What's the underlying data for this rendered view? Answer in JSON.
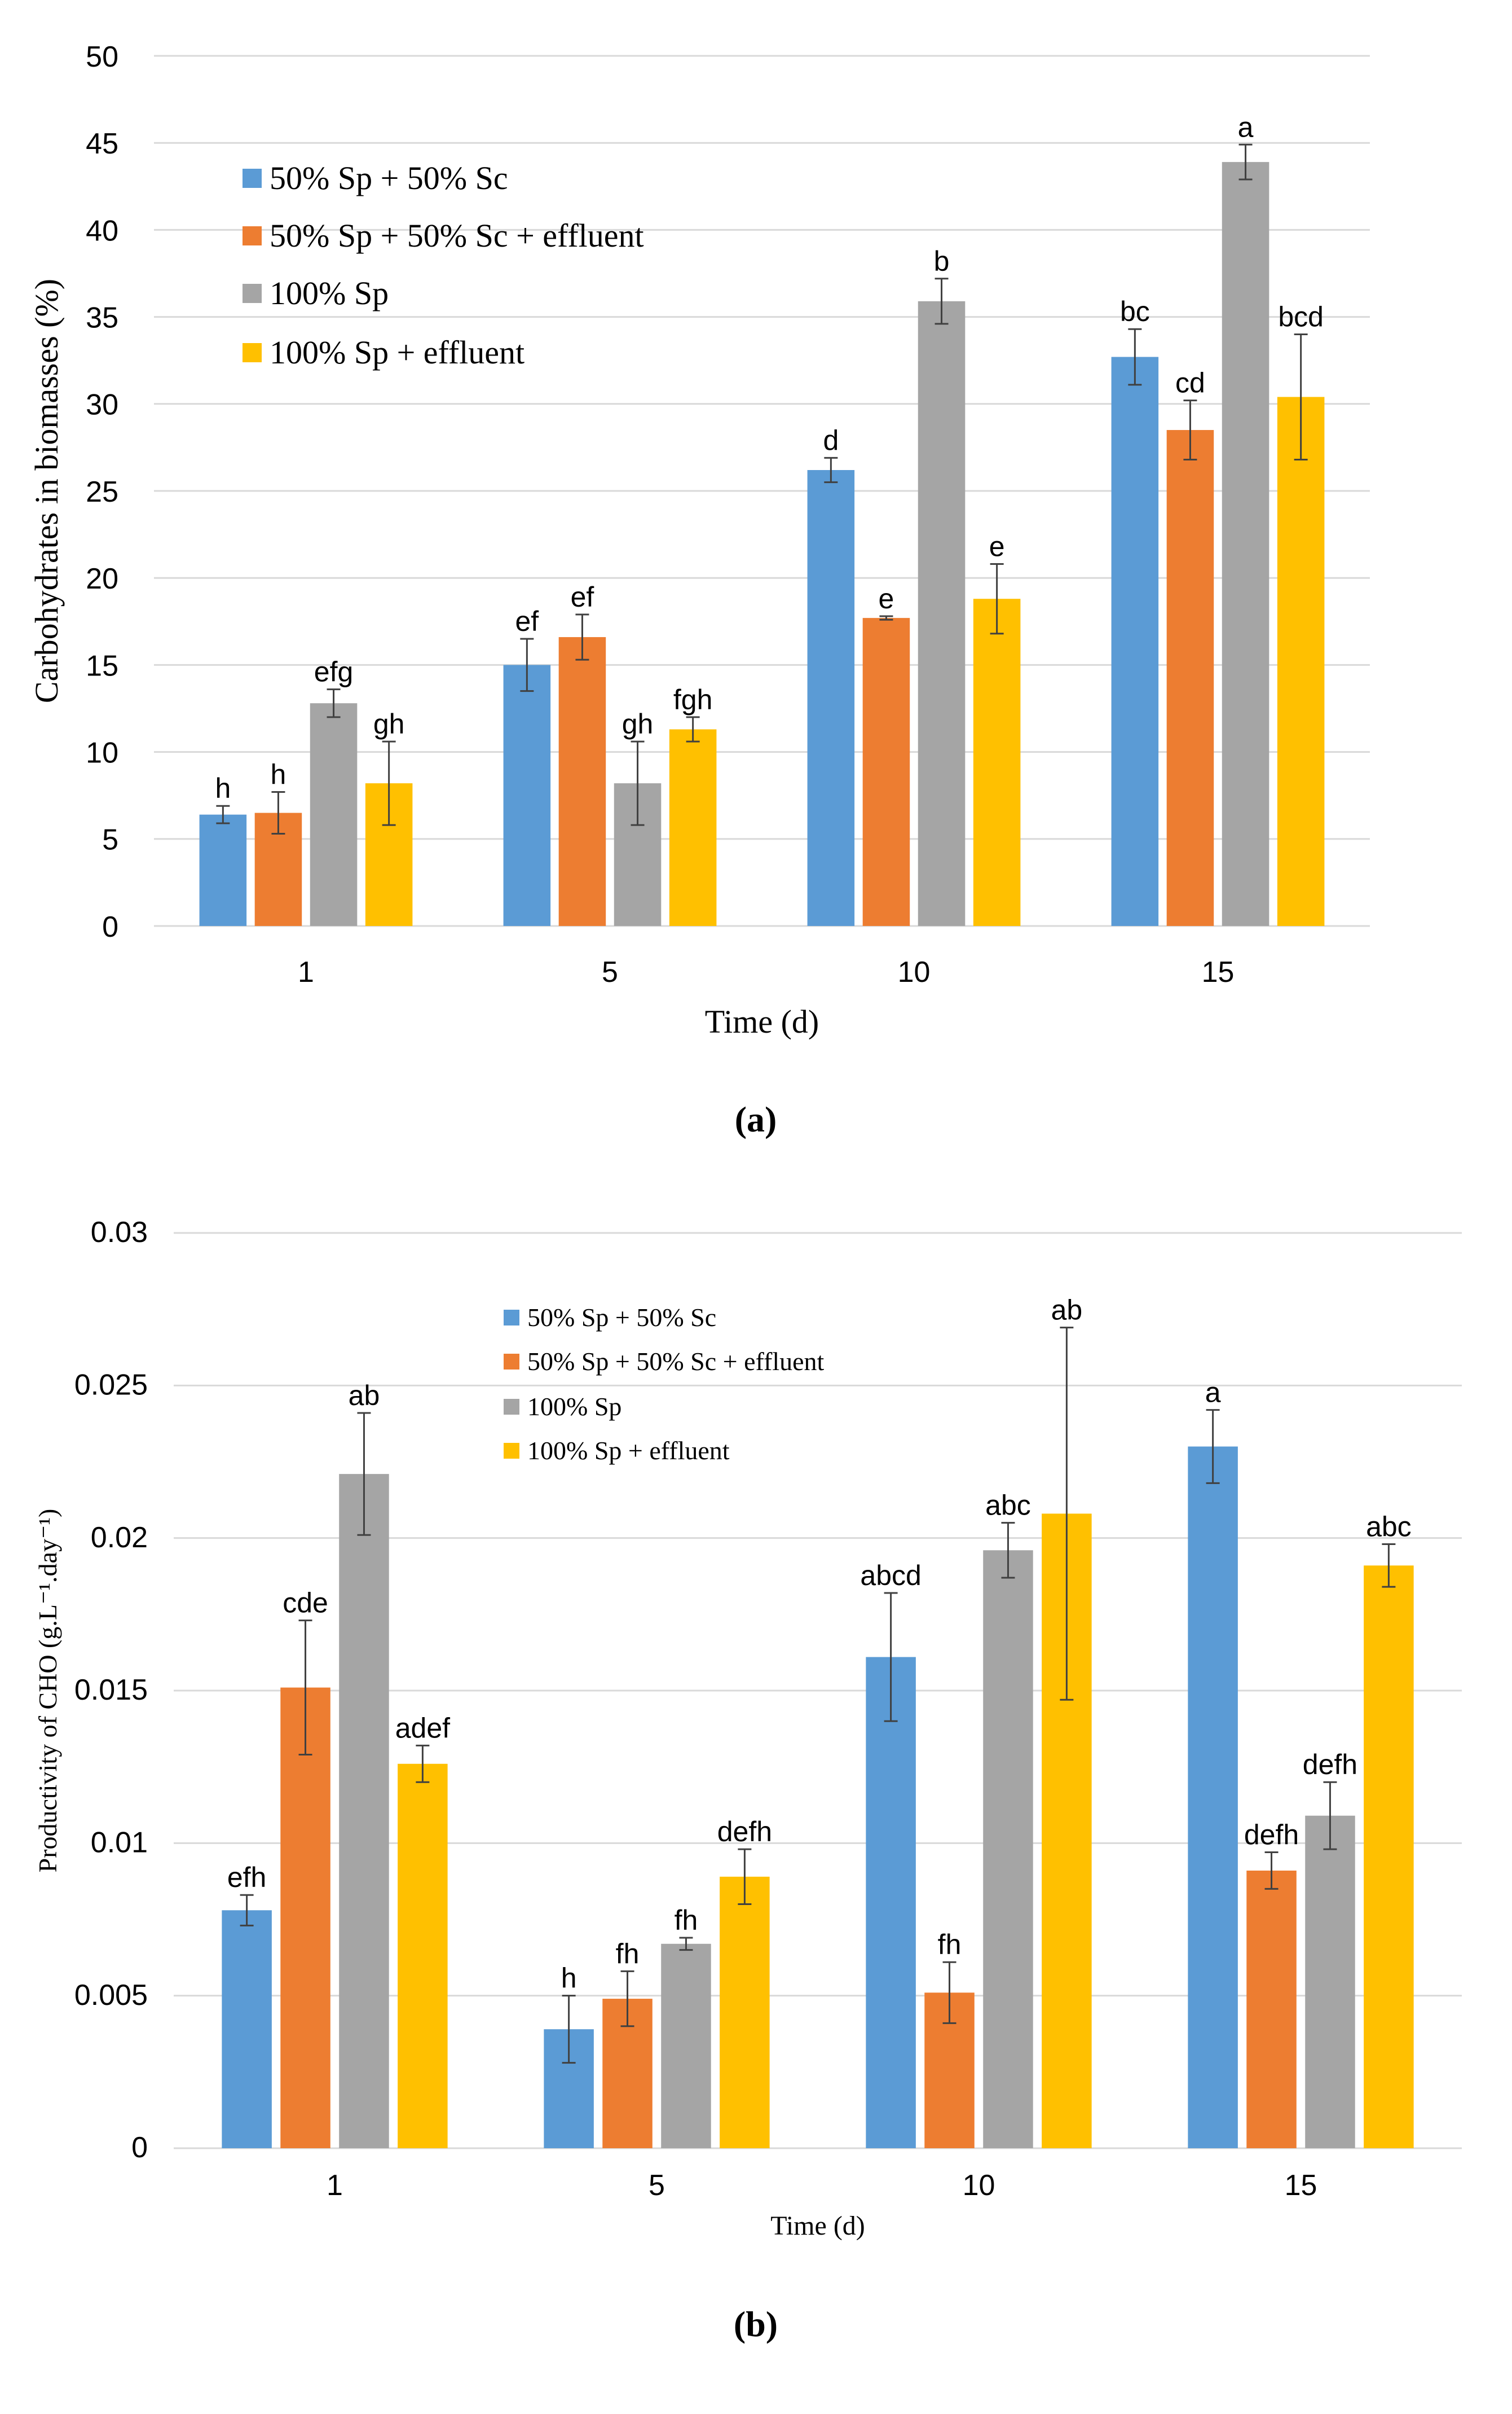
{
  "colors": {
    "series": [
      "#5B9BD5",
      "#ED7D31",
      "#A5A5A5",
      "#FFC000"
    ],
    "grid": "#D9D9D9",
    "error_bar": "#404040"
  },
  "chart_data": [
    {
      "type": "bar",
      "caption": "(a)",
      "title": "",
      "xlabel": "Time (d)",
      "ylabel": "Carbohydrates in biomasses (%)",
      "ylim": [
        0,
        50
      ],
      "yticks": [
        0,
        5,
        10,
        15,
        20,
        25,
        30,
        35,
        40,
        45,
        50
      ],
      "ytick_labels": [
        "0",
        "5",
        "10",
        "15",
        "20",
        "25",
        "30",
        "35",
        "40",
        "45",
        "50"
      ],
      "grid": true,
      "legend_position": "top-left",
      "categories": [
        "1",
        "5",
        "10",
        "15"
      ],
      "series": [
        {
          "name": "50% Sp + 50% Sc",
          "values": [
            6.4,
            15.0,
            26.2,
            32.7
          ],
          "errors": [
            0.5,
            1.5,
            0.7,
            1.6
          ],
          "labels": [
            "h",
            "ef",
            "d",
            "bc"
          ]
        },
        {
          "name": "50% Sp + 50% Sc + effluent",
          "values": [
            6.5,
            16.6,
            17.7,
            28.5
          ],
          "errors": [
            1.2,
            1.3,
            0.1,
            1.7
          ],
          "labels": [
            "h",
            "ef",
            "e",
            "cd"
          ]
        },
        {
          "name": "100% Sp",
          "values": [
            12.8,
            8.2,
            35.9,
            43.9
          ],
          "errors": [
            0.8,
            2.4,
            1.3,
            1.0
          ],
          "labels": [
            "efg",
            "gh",
            "b",
            "a"
          ]
        },
        {
          "name": "100% Sp + effluent",
          "values": [
            8.2,
            11.3,
            18.8,
            30.4
          ],
          "errors": [
            2.4,
            0.7,
            2.0,
            3.6
          ],
          "labels": [
            "gh",
            "fgh",
            "e",
            "bcd"
          ]
        }
      ]
    },
    {
      "type": "bar",
      "caption": "(b)",
      "title": "",
      "xlabel": "Time (d)",
      "ylabel": "Productivity of CHO (g.L⁻¹.day⁻¹)",
      "ylim": [
        0,
        0.03
      ],
      "yticks": [
        0,
        0.005,
        0.01,
        0.015,
        0.02,
        0.025,
        0.03
      ],
      "ytick_labels": [
        "0",
        "0.005",
        "0.01",
        "0.015",
        "0.02",
        "0.025",
        "0.03"
      ],
      "grid": true,
      "legend_position": "top-center",
      "categories": [
        "1",
        "5",
        "10",
        "15"
      ],
      "series": [
        {
          "name": "50% Sp + 50% Sc",
          "values": [
            0.0078,
            0.0039,
            0.0161,
            0.023
          ],
          "errors": [
            0.0005,
            0.0011,
            0.0021,
            0.0012
          ],
          "labels": [
            "efh",
            "h",
            "abcd",
            "a"
          ]
        },
        {
          "name": "50% Sp + 50% Sc + effluent",
          "values": [
            0.0151,
            0.0049,
            0.0051,
            0.0091
          ],
          "errors": [
            0.0022,
            0.0009,
            0.001,
            0.0006
          ],
          "labels": [
            "cde",
            "fh",
            "fh",
            "defh"
          ]
        },
        {
          "name": "100% Sp",
          "values": [
            0.0221,
            0.0067,
            0.0196,
            0.0109
          ],
          "errors": [
            0.002,
            0.0002,
            0.0009,
            0.0011
          ],
          "labels": [
            "ab",
            "fh",
            "abc",
            "defh"
          ]
        },
        {
          "name": "100% Sp + effluent",
          "values": [
            0.0126,
            0.0089,
            0.0208,
            0.0191
          ],
          "errors": [
            0.0006,
            0.0009,
            0.0061,
            0.0007
          ],
          "labels": [
            "adef",
            "defh",
            "ab",
            "abc"
          ]
        }
      ]
    }
  ]
}
